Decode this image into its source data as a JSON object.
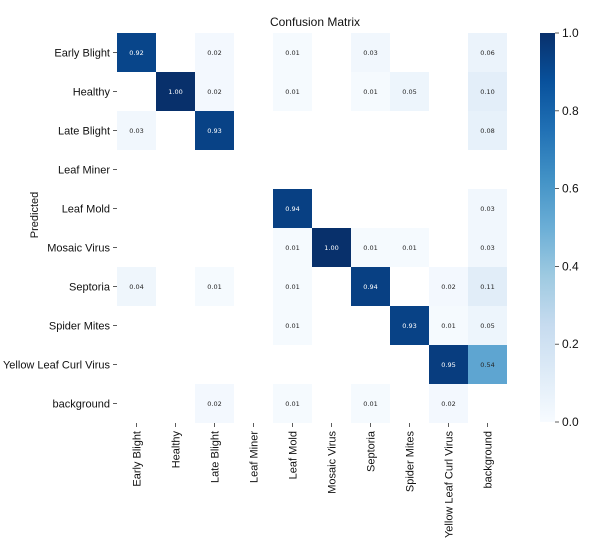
{
  "chart_data": {
    "type": "heatmap",
    "title": "Confusion Matrix",
    "ylabel": "Predicted",
    "xlabel": "",
    "x_categories": [
      "Early Blight",
      "Healthy",
      "Late Blight",
      "Leaf Miner",
      "Leaf Mold",
      "Mosaic Virus",
      "Septoria",
      "Spider Mites",
      "Yellow Leaf Curl Virus",
      "background"
    ],
    "y_categories": [
      "Early Blight",
      "Healthy",
      "Late Blight",
      "Leaf Miner",
      "Leaf Mold",
      "Mosaic Virus",
      "Septoria",
      "Spider Mites",
      "Yellow Leaf Curl Virus",
      "background"
    ],
    "values": [
      [
        0.92,
        null,
        0.02,
        null,
        0.01,
        null,
        0.03,
        null,
        null,
        0.06
      ],
      [
        null,
        1.0,
        0.02,
        null,
        0.01,
        null,
        0.01,
        0.05,
        null,
        0.1
      ],
      [
        0.03,
        null,
        0.93,
        null,
        null,
        null,
        null,
        null,
        null,
        0.08
      ],
      [
        null,
        null,
        null,
        null,
        null,
        null,
        null,
        null,
        null,
        null
      ],
      [
        null,
        null,
        null,
        null,
        0.94,
        null,
        null,
        null,
        null,
        0.03
      ],
      [
        null,
        null,
        null,
        null,
        0.01,
        1.0,
        0.01,
        0.01,
        null,
        0.03
      ],
      [
        0.04,
        null,
        0.01,
        null,
        0.01,
        null,
        0.94,
        null,
        0.02,
        0.11
      ],
      [
        null,
        null,
        null,
        null,
        0.01,
        null,
        null,
        0.93,
        0.01,
        0.05
      ],
      [
        null,
        null,
        null,
        null,
        null,
        null,
        null,
        null,
        0.95,
        0.54
      ],
      [
        null,
        null,
        0.02,
        null,
        0.01,
        null,
        0.01,
        null,
        0.02,
        null
      ]
    ],
    "value_range": [
      0.0,
      1.0
    ],
    "colormap": "Blues",
    "colorbar_ticks": [
      "0.0",
      "0.2",
      "0.4",
      "0.6",
      "0.8",
      "1.0"
    ],
    "colors": {
      "low": "#f7fbff",
      "high": "#08306b"
    }
  }
}
